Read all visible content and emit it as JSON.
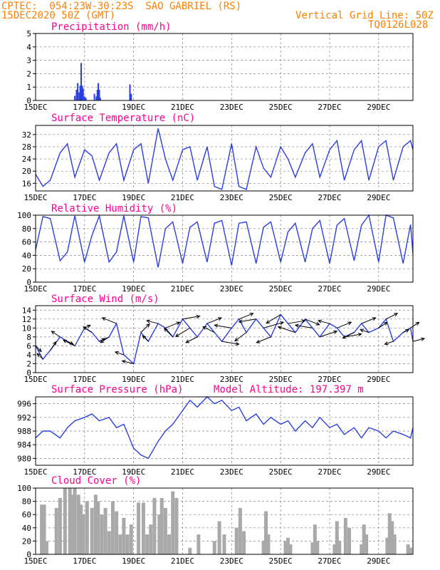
{
  "header": {
    "line1": "CPTEC:  054:23W-30:23S  SAO GABRIEL (RS)",
    "line2": "15DEC2020 50Z (GMT)",
    "right1": "Vertical Grid Line: 50Z",
    "right2": "TQ0126L028"
  },
  "colors": {
    "header": "#ff7f00",
    "title": "#ff0090",
    "line": "#2b3fe0",
    "bar": "#2b3fe0",
    "cloud": "#a9a9a9",
    "arrow": "#000000",
    "grid": "#808080"
  },
  "chart_data": [
    {
      "type": "bar",
      "title": "Precipitation (mm/h)",
      "x_tick_labels": [
        "15DEC",
        "17DEC",
        "19DEC",
        "21DEC",
        "23DEC",
        "25DEC",
        "27DEC",
        "29DEC"
      ],
      "y_ticks": [
        0,
        1,
        2,
        3,
        4,
        5
      ],
      "ylim": [
        0,
        5
      ],
      "xlim_days": [
        15,
        30.4
      ],
      "x": [
        16.6,
        16.67,
        16.72,
        16.78,
        16.82,
        16.86,
        16.9,
        16.94,
        17.0,
        17.05,
        17.4,
        17.48,
        17.52,
        17.56,
        17.6,
        17.64,
        18.85,
        18.9
      ],
      "values": [
        0.35,
        0.8,
        1.3,
        0.6,
        1.1,
        2.8,
        1.1,
        0.9,
        0.3,
        0.2,
        0.5,
        0.3,
        0.8,
        1.3,
        0.8,
        0.2,
        1.2,
        0.5
      ]
    },
    {
      "type": "line",
      "title": "Surface Temperature (nC)",
      "x_tick_labels": [
        "15DEC",
        "17DEC",
        "19DEC",
        "21DEC",
        "23DEC",
        "25DEC",
        "27DEC",
        "29DEC"
      ],
      "y_ticks": [
        16,
        20,
        24,
        28,
        32
      ],
      "ylim": [
        13.5,
        35
      ],
      "xlim_days": [
        15,
        30.4
      ],
      "x": [
        15.0,
        15.3,
        15.6,
        16.0,
        16.3,
        16.6,
        17.0,
        17.3,
        17.6,
        18.0,
        18.3,
        18.6,
        19.0,
        19.3,
        19.6,
        20.0,
        20.3,
        20.6,
        21.0,
        21.3,
        21.6,
        22.0,
        22.3,
        22.6,
        23.0,
        23.3,
        23.6,
        24.0,
        24.3,
        24.6,
        25.0,
        25.3,
        25.6,
        26.0,
        26.3,
        26.6,
        27.0,
        27.3,
        27.6,
        28.0,
        28.3,
        28.6,
        29.0,
        29.3,
        29.6,
        30.0,
        30.3,
        30.4
      ],
      "y": [
        19,
        15,
        17,
        26,
        29,
        18,
        27,
        25,
        17,
        26,
        29,
        17,
        27,
        29,
        16,
        34,
        24,
        17,
        27,
        28,
        17,
        28,
        15,
        14,
        29,
        15,
        14,
        28,
        21,
        18,
        28,
        24,
        18,
        26,
        29,
        18,
        27,
        30,
        17,
        27,
        30,
        17,
        28,
        30,
        17,
        28,
        30,
        27
      ]
    },
    {
      "type": "line",
      "title": "Relative Humidity (%)",
      "x_tick_labels": [
        "15DEC",
        "17DEC",
        "19DEC",
        "21DEC",
        "23DEC",
        "25DEC",
        "27DEC",
        "29DEC"
      ],
      "y_ticks": [
        0,
        20,
        40,
        60,
        80,
        100
      ],
      "ylim": [
        0,
        100
      ],
      "xlim_days": [
        15,
        30.4
      ],
      "x": [
        15.0,
        15.3,
        15.6,
        16.0,
        16.3,
        16.6,
        17.0,
        17.3,
        17.6,
        18.0,
        18.3,
        18.6,
        19.0,
        19.3,
        19.6,
        20.0,
        20.3,
        20.6,
        21.0,
        21.3,
        21.6,
        22.0,
        22.3,
        22.6,
        23.0,
        23.3,
        23.6,
        24.0,
        24.3,
        24.6,
        25.0,
        25.3,
        25.6,
        26.0,
        26.3,
        26.6,
        27.0,
        27.3,
        27.6,
        28.0,
        28.3,
        28.6,
        29.0,
        29.3,
        29.6,
        30.0,
        30.3,
        30.4
      ],
      "y": [
        48,
        98,
        95,
        32,
        45,
        99,
        30,
        70,
        99,
        30,
        45,
        99,
        30,
        98,
        96,
        22,
        80,
        90,
        28,
        82,
        90,
        30,
        88,
        92,
        25,
        88,
        90,
        28,
        82,
        90,
        30,
        75,
        88,
        30,
        80,
        92,
        28,
        85,
        95,
        32,
        85,
        100,
        30,
        100,
        96,
        28,
        86,
        42
      ]
    },
    {
      "type": "line",
      "title": "Surface Wind (m/s)",
      "x_tick_labels": [
        "15DEC",
        "17DEC",
        "19DEC",
        "21DEC",
        "23DEC",
        "25DEC",
        "27DEC",
        "29DEC"
      ],
      "y_ticks": [
        0,
        2,
        4,
        6,
        8,
        10,
        12,
        14
      ],
      "ylim": [
        0,
        15
      ],
      "xlim_days": [
        15,
        30.4
      ],
      "x": [
        15.0,
        15.3,
        15.6,
        16.0,
        16.3,
        16.6,
        17.0,
        17.3,
        17.6,
        18.0,
        18.3,
        18.6,
        19.0,
        19.3,
        19.6,
        20.0,
        20.3,
        20.6,
        21.0,
        21.3,
        21.6,
        22.0,
        22.3,
        22.6,
        23.0,
        23.3,
        23.6,
        24.0,
        24.3,
        24.6,
        25.0,
        25.3,
        25.6,
        26.0,
        26.3,
        26.6,
        27.0,
        27.3,
        27.6,
        28.0,
        28.3,
        28.6,
        29.0,
        29.3,
        29.6,
        30.0,
        30.3,
        30.4
      ],
      "y": [
        6,
        3,
        5,
        8,
        7,
        6,
        10,
        9,
        7,
        8,
        11,
        4,
        2,
        9,
        7,
        11,
        10,
        8,
        12,
        10,
        8,
        11,
        9,
        7,
        10,
        12,
        9,
        12,
        10,
        8,
        13,
        11,
        9,
        12,
        10,
        8,
        11,
        10,
        8,
        9,
        11,
        9,
        10,
        12,
        7,
        9,
        10,
        7
      ],
      "arrow_u": [
        2,
        -2,
        2,
        -3,
        2,
        -4,
        2,
        -3,
        2,
        -3,
        -5,
        -3,
        -4,
        3,
        -2,
        -4,
        5,
        -3,
        6,
        -5,
        -4,
        5,
        -4,
        6,
        -6,
        5,
        -4,
        -6,
        7,
        -5,
        -5,
        6,
        -6,
        5,
        -6,
        6,
        -4,
        5,
        6,
        -4,
        5,
        -3,
        3,
        4,
        -3,
        2,
        3,
        4
      ],
      "arrow_v": [
        -2,
        2,
        3,
        2,
        -1,
        2,
        1,
        2,
        1,
        -2,
        2,
        1,
        1,
        3,
        2,
        1,
        2,
        3,
        1,
        -3,
        -2,
        2,
        2,
        -1,
        1,
        2,
        -3,
        -1,
        2,
        -2,
        -3,
        1,
        2,
        -2,
        1,
        2,
        1,
        2,
        1,
        -2,
        2,
        1,
        2,
        2,
        -1,
        1,
        2,
        1
      ]
    },
    {
      "type": "line",
      "title": "Surface Pressure (hPa)",
      "annotation": "Model Altitude: 197.397 m",
      "x_tick_labels": [
        "15DEC",
        "17DEC",
        "19DEC",
        "21DEC",
        "23DEC",
        "25DEC",
        "27DEC",
        "29DEC"
      ],
      "y_ticks": [
        980,
        984,
        988,
        992,
        996
      ],
      "ylim": [
        978,
        998
      ],
      "xlim_days": [
        15,
        30.4
      ],
      "x": [
        15.0,
        15.3,
        15.6,
        16.0,
        16.3,
        16.6,
        17.0,
        17.3,
        17.6,
        18.0,
        18.3,
        18.6,
        19.0,
        19.3,
        19.6,
        20.0,
        20.3,
        20.6,
        21.0,
        21.3,
        21.6,
        22.0,
        22.3,
        22.6,
        23.0,
        23.3,
        23.6,
        24.0,
        24.3,
        24.6,
        25.0,
        25.3,
        25.6,
        26.0,
        26.3,
        26.6,
        27.0,
        27.3,
        27.6,
        28.0,
        28.3,
        28.6,
        29.0,
        29.3,
        29.6,
        30.0,
        30.3,
        30.4
      ],
      "y": [
        986,
        988,
        988,
        986,
        989,
        991,
        992,
        993,
        991,
        992,
        989,
        990,
        983,
        981,
        980,
        985,
        988,
        990,
        994,
        997,
        995,
        998,
        996,
        997,
        994,
        995,
        991,
        993,
        990,
        992,
        990,
        991,
        988,
        991,
        989,
        992,
        989,
        990,
        987,
        989,
        986,
        989,
        988,
        986,
        988,
        987,
        986,
        989
      ]
    },
    {
      "type": "bar",
      "title": "Cloud Cover (%)",
      "x_tick_labels": [
        "15DEC",
        "17DEC",
        "19DEC",
        "21DEC",
        "23DEC",
        "25DEC",
        "27DEC",
        "29DEC"
      ],
      "y_ticks": [
        0,
        20,
        40,
        60,
        80,
        100
      ],
      "ylim": [
        0,
        100
      ],
      "xlim_days": [
        15,
        30.4
      ],
      "x": [
        15.25,
        15.35,
        15.45,
        15.85,
        16.0,
        16.2,
        16.4,
        16.5,
        16.6,
        16.75,
        16.85,
        16.95,
        17.1,
        17.3,
        17.45,
        17.55,
        17.7,
        17.85,
        18.0,
        18.15,
        18.3,
        18.45,
        18.6,
        18.75,
        18.9,
        19.2,
        19.4,
        19.55,
        19.7,
        19.85,
        20.05,
        20.15,
        20.3,
        20.45,
        20.6,
        20.75,
        21.3,
        21.65,
        22.3,
        22.5,
        22.7,
        23.2,
        23.35,
        23.5,
        24.3,
        24.4,
        24.5,
        25.2,
        25.3,
        25.4,
        26.3,
        26.4,
        26.5,
        27.2,
        27.3,
        27.4,
        27.65,
        27.8,
        28.3,
        28.4,
        28.5,
        29.35,
        29.45,
        29.55,
        29.65,
        30.2,
        30.3
      ],
      "values": [
        75,
        75,
        20,
        70,
        85,
        100,
        100,
        90,
        100,
        90,
        75,
        60,
        80,
        70,
        90,
        80,
        60,
        70,
        35,
        80,
        65,
        30,
        55,
        30,
        45,
        78,
        78,
        30,
        45,
        85,
        60,
        85,
        70,
        30,
        95,
        85,
        10,
        30,
        20,
        50,
        30,
        40,
        70,
        35,
        20,
        65,
        30,
        20,
        25,
        15,
        18,
        45,
        20,
        15,
        50,
        20,
        55,
        40,
        15,
        45,
        30,
        25,
        62,
        50,
        30,
        15,
        10
      ]
    }
  ]
}
